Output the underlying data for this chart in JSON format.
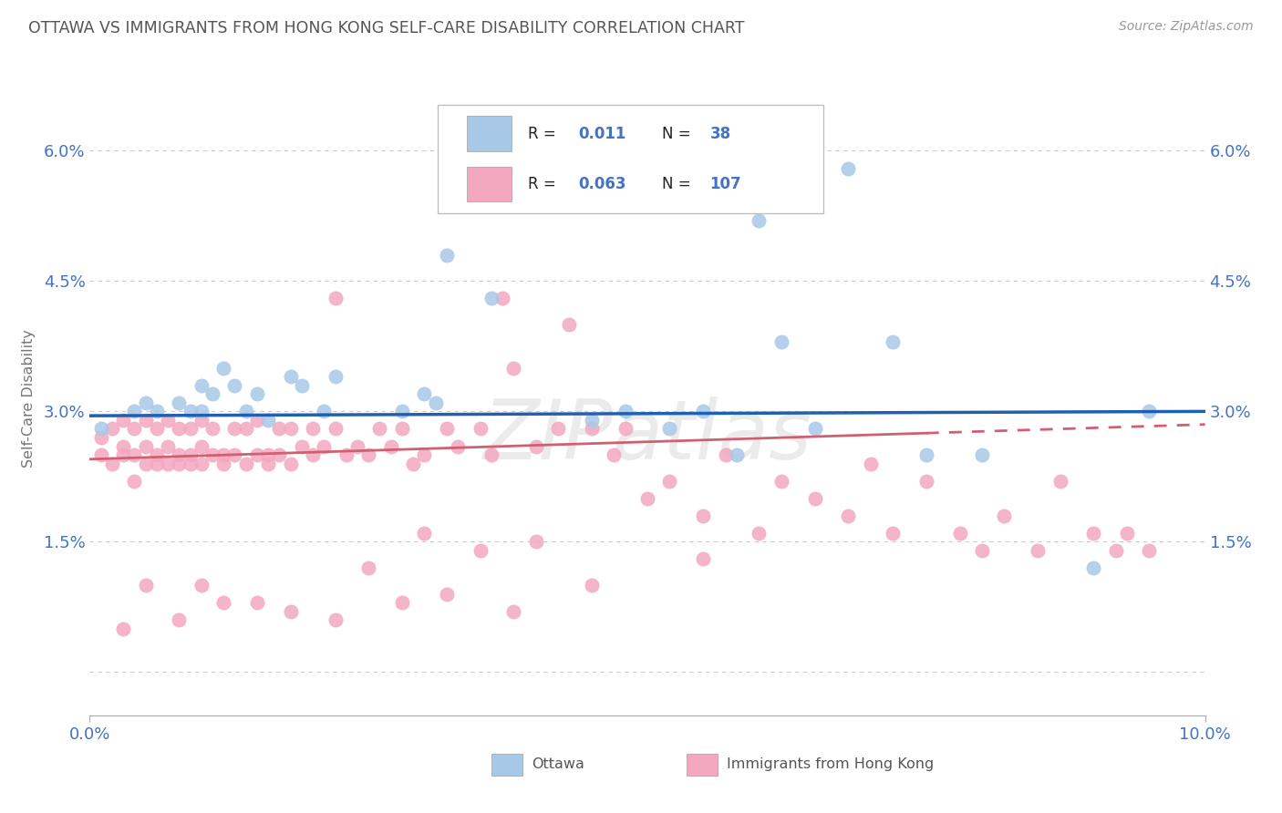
{
  "title": "OTTAWA VS IMMIGRANTS FROM HONG KONG SELF-CARE DISABILITY CORRELATION CHART",
  "source": "Source: ZipAtlas.com",
  "ylabel": "Self-Care Disability",
  "xlim": [
    0.0,
    0.1
  ],
  "ylim": [
    -0.005,
    0.068
  ],
  "yticks": [
    0.0,
    0.015,
    0.03,
    0.045,
    0.06
  ],
  "ytick_labels": [
    "",
    "1.5%",
    "3.0%",
    "4.5%",
    "6.0%"
  ],
  "xtick_positions": [
    0.0,
    0.1
  ],
  "xtick_labels": [
    "0.0%",
    "10.0%"
  ],
  "color_ottawa": "#a8c8e8",
  "color_hk": "#f4a8c0",
  "line_color_blue": "#2060b0",
  "line_color_pink": "#d06070",
  "legend_label_ottawa": "Ottawa",
  "legend_label_hk": "Immigrants from Hong Kong",
  "axis_tick_color": "#4472c4",
  "title_color": "#555555",
  "source_color": "#999999",
  "grid_color": "#cccccc",
  "watermark": "ZIPatlas",
  "ottawa_x": [
    0.001,
    0.004,
    0.005,
    0.006,
    0.008,
    0.009,
    0.01,
    0.01,
    0.011,
    0.012,
    0.013,
    0.014,
    0.015,
    0.016,
    0.018,
    0.019,
    0.021,
    0.022,
    0.028,
    0.03,
    0.031,
    0.032,
    0.036,
    0.043,
    0.045,
    0.048,
    0.052,
    0.055,
    0.058,
    0.06,
    0.062,
    0.065,
    0.068,
    0.072,
    0.075,
    0.08,
    0.09,
    0.095
  ],
  "ottawa_y": [
    0.028,
    0.03,
    0.031,
    0.03,
    0.031,
    0.03,
    0.033,
    0.03,
    0.032,
    0.035,
    0.033,
    0.03,
    0.032,
    0.029,
    0.034,
    0.033,
    0.03,
    0.034,
    0.03,
    0.032,
    0.031,
    0.048,
    0.043,
    0.055,
    0.029,
    0.03,
    0.028,
    0.03,
    0.025,
    0.052,
    0.038,
    0.028,
    0.058,
    0.038,
    0.025,
    0.025,
    0.012,
    0.03
  ],
  "hk_x": [
    0.001,
    0.001,
    0.002,
    0.002,
    0.003,
    0.003,
    0.003,
    0.004,
    0.004,
    0.004,
    0.005,
    0.005,
    0.005,
    0.006,
    0.006,
    0.006,
    0.007,
    0.007,
    0.007,
    0.008,
    0.008,
    0.008,
    0.009,
    0.009,
    0.009,
    0.01,
    0.01,
    0.01,
    0.011,
    0.011,
    0.012,
    0.012,
    0.013,
    0.013,
    0.014,
    0.014,
    0.015,
    0.015,
    0.016,
    0.016,
    0.017,
    0.017,
    0.018,
    0.018,
    0.019,
    0.02,
    0.02,
    0.021,
    0.022,
    0.022,
    0.023,
    0.024,
    0.025,
    0.026,
    0.027,
    0.028,
    0.029,
    0.03,
    0.032,
    0.033,
    0.035,
    0.036,
    0.037,
    0.038,
    0.04,
    0.042,
    0.043,
    0.045,
    0.047,
    0.048,
    0.05,
    0.052,
    0.055,
    0.057,
    0.06,
    0.062,
    0.065,
    0.068,
    0.07,
    0.072,
    0.075,
    0.078,
    0.08,
    0.082,
    0.085,
    0.087,
    0.09,
    0.092,
    0.093,
    0.095,
    0.003,
    0.008,
    0.012,
    0.018,
    0.022,
    0.028,
    0.032,
    0.038,
    0.045,
    0.055,
    0.03,
    0.025,
    0.035,
    0.015,
    0.01,
    0.005,
    0.04
  ],
  "hk_y": [
    0.027,
    0.025,
    0.028,
    0.024,
    0.026,
    0.029,
    0.025,
    0.028,
    0.025,
    0.022,
    0.026,
    0.024,
    0.029,
    0.025,
    0.028,
    0.024,
    0.026,
    0.029,
    0.024,
    0.025,
    0.028,
    0.024,
    0.025,
    0.028,
    0.024,
    0.026,
    0.029,
    0.024,
    0.025,
    0.028,
    0.025,
    0.024,
    0.025,
    0.028,
    0.024,
    0.028,
    0.025,
    0.029,
    0.024,
    0.025,
    0.028,
    0.025,
    0.024,
    0.028,
    0.026,
    0.025,
    0.028,
    0.026,
    0.043,
    0.028,
    0.025,
    0.026,
    0.025,
    0.028,
    0.026,
    0.028,
    0.024,
    0.025,
    0.028,
    0.026,
    0.028,
    0.025,
    0.043,
    0.035,
    0.026,
    0.028,
    0.04,
    0.028,
    0.025,
    0.028,
    0.02,
    0.022,
    0.018,
    0.025,
    0.016,
    0.022,
    0.02,
    0.018,
    0.024,
    0.016,
    0.022,
    0.016,
    0.014,
    0.018,
    0.014,
    0.022,
    0.016,
    0.014,
    0.016,
    0.014,
    0.005,
    0.006,
    0.008,
    0.007,
    0.006,
    0.008,
    0.009,
    0.007,
    0.01,
    0.013,
    0.016,
    0.012,
    0.014,
    0.008,
    0.01,
    0.01,
    0.015
  ]
}
